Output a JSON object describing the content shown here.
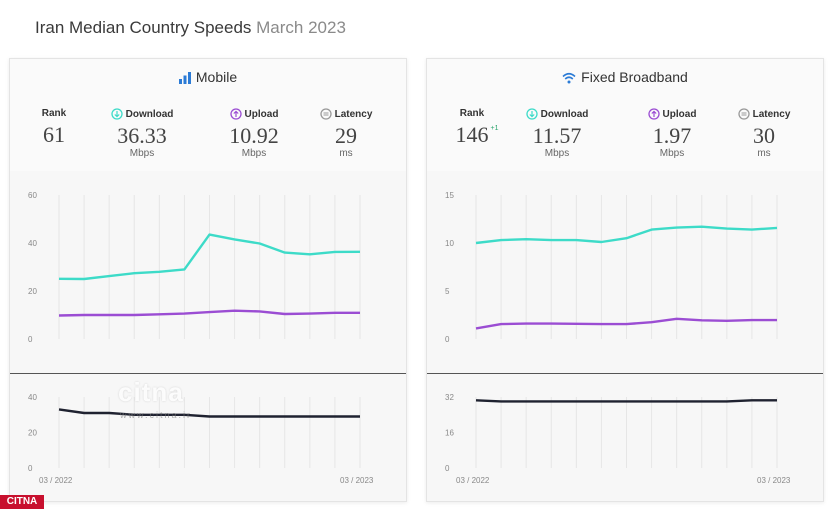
{
  "page": {
    "title": "Iran Median Country Speeds",
    "month": "March 2023"
  },
  "colors": {
    "download": "#3ddbc8",
    "upload": "#9b4dd3",
    "latency": "#1f2230",
    "grid": "#e6e6e6"
  },
  "panels": [
    {
      "title": "Mobile",
      "icon": "signal-bars-icon",
      "metrics": {
        "rank_label": "Rank",
        "rank": "61",
        "rank_change": "",
        "download_label": "Download",
        "download": "36.33",
        "download_unit": "Mbps",
        "upload_label": "Upload",
        "upload": "10.92",
        "upload_unit": "Mbps",
        "latency_label": "Latency",
        "latency": "29",
        "latency_unit": "ms"
      },
      "x_start_label": "03 / 2022",
      "x_end_label": "03 / 2023"
    },
    {
      "title": "Fixed Broadband",
      "icon": "wifi-icon",
      "metrics": {
        "rank_label": "Rank",
        "rank": "146",
        "rank_change": "+1",
        "download_label": "Download",
        "download": "11.57",
        "download_unit": "Mbps",
        "upload_label": "Upload",
        "upload": "1.97",
        "upload_unit": "Mbps",
        "latency_label": "Latency",
        "latency": "30",
        "latency_unit": "ms"
      },
      "x_start_label": "03 / 2022",
      "x_end_label": "03 / 2023"
    }
  ],
  "watermark": {
    "text": "citna",
    "sub": "www.citna.ir"
  },
  "corner_logo": "CITNA",
  "chart_data": [
    {
      "type": "line",
      "title": "Mobile",
      "x": [
        "03/2022",
        "04/2022",
        "05/2022",
        "06/2022",
        "07/2022",
        "08/2022",
        "09/2022",
        "10/2022",
        "11/2022",
        "12/2022",
        "01/2023",
        "02/2023",
        "03/2023"
      ],
      "ylim": [
        0,
        60
      ],
      "yticks": [
        0,
        20,
        40,
        60
      ],
      "series": [
        {
          "name": "Download",
          "values": [
            25.1,
            25.0,
            26.2,
            27.4,
            28.0,
            29.0,
            43.5,
            41.5,
            39.8,
            36.0,
            35.3,
            36.3,
            36.33
          ]
        },
        {
          "name": "Upload",
          "values": [
            9.8,
            10.0,
            10.0,
            10.0,
            10.3,
            10.6,
            11.2,
            11.8,
            11.5,
            10.4,
            10.6,
            10.92,
            10.92
          ]
        }
      ],
      "latency": {
        "name": "Latency",
        "ylim": [
          0,
          40
        ],
        "yticks": [
          0,
          20,
          40
        ],
        "values": [
          33,
          31,
          31,
          30,
          30,
          30,
          29,
          29,
          29,
          29,
          29,
          29,
          29
        ]
      }
    },
    {
      "type": "line",
      "title": "Fixed Broadband",
      "x": [
        "03/2022",
        "04/2022",
        "05/2022",
        "06/2022",
        "07/2022",
        "08/2022",
        "09/2022",
        "10/2022",
        "11/2022",
        "12/2022",
        "01/2023",
        "02/2023",
        "03/2023"
      ],
      "ylim": [
        0,
        15
      ],
      "yticks": [
        0,
        5,
        10,
        15
      ],
      "series": [
        {
          "name": "Download",
          "values": [
            10.0,
            10.3,
            10.4,
            10.3,
            10.3,
            10.1,
            10.5,
            11.4,
            11.6,
            11.7,
            11.5,
            11.4,
            11.57
          ]
        },
        {
          "name": "Upload",
          "values": [
            1.1,
            1.55,
            1.6,
            1.6,
            1.58,
            1.55,
            1.55,
            1.75,
            2.1,
            1.95,
            1.9,
            1.97,
            1.97
          ]
        }
      ],
      "latency": {
        "name": "Latency",
        "ylim": [
          0,
          32
        ],
        "yticks": [
          0,
          16,
          32
        ],
        "values": [
          30.5,
          30,
          30,
          30,
          30,
          30,
          30,
          30,
          30,
          30,
          30,
          30.5,
          30.5
        ]
      }
    }
  ]
}
